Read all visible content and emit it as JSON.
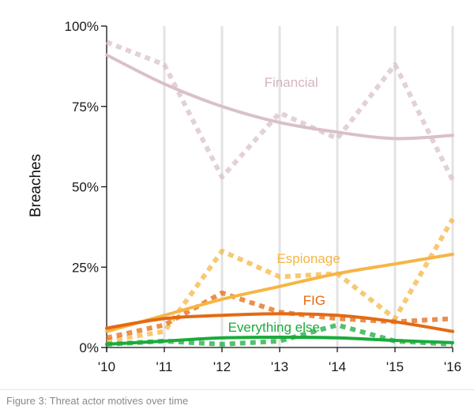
{
  "caption": "Figure 3: Threat actor motives over time",
  "chart_data": {
    "type": "line",
    "title": "",
    "xlabel": "",
    "ylabel": "Breaches",
    "x": [
      "'10",
      "'11",
      "'12",
      "'13",
      "'14",
      "'15",
      "'16"
    ],
    "ylim": [
      0,
      100
    ],
    "yticks": [
      {
        "value": 0,
        "label": "0%"
      },
      {
        "value": 25,
        "label": "25%"
      },
      {
        "value": 50,
        "label": "50%"
      },
      {
        "value": 75,
        "label": "75%"
      },
      {
        "value": 100,
        "label": "100%"
      }
    ],
    "grid": "vertical",
    "legend": "inline labels",
    "series": [
      {
        "name": "Financial",
        "color": "#d9c0cb",
        "values": [
          95,
          88,
          53,
          73,
          65,
          88,
          52
        ],
        "trend": [
          91,
          82,
          75,
          70,
          67,
          65,
          66
        ]
      },
      {
        "name": "Espionage",
        "color": "#f6b544",
        "values": [
          2,
          5,
          30,
          22,
          23,
          9,
          40
        ],
        "trend": [
          5,
          10,
          15,
          19,
          23,
          26,
          29
        ]
      },
      {
        "name": "FIG",
        "color": "#e46a12",
        "values": [
          3,
          7,
          17,
          11,
          9,
          8,
          9
        ],
        "trend": [
          6,
          9,
          10,
          10.5,
          10,
          8,
          5
        ]
      },
      {
        "name": "Everything else",
        "color": "#1aab3c",
        "values": [
          1,
          2,
          1,
          2,
          7,
          2,
          1
        ],
        "trend": [
          1,
          2,
          3,
          3.2,
          3,
          2.2,
          1.5
        ]
      }
    ]
  }
}
